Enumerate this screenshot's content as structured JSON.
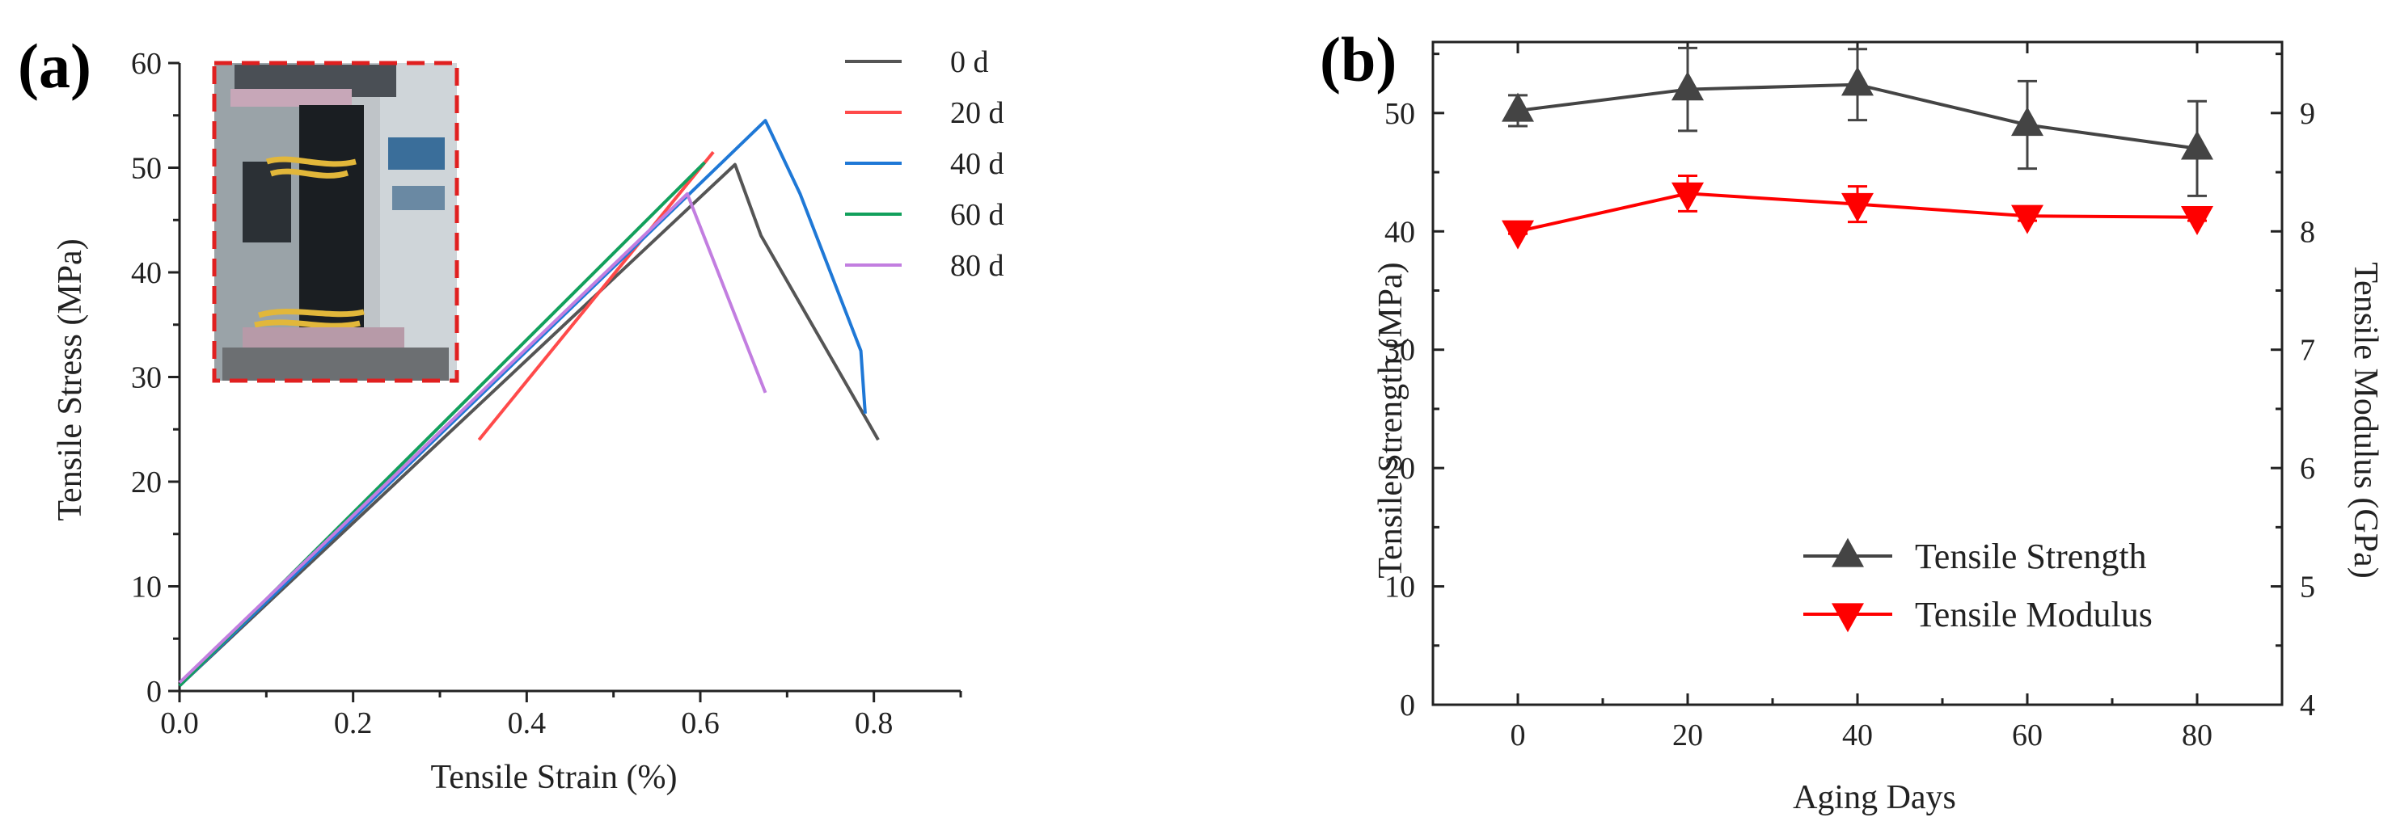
{
  "chart_data": [
    {
      "panel": "(a)",
      "type": "line",
      "xlabel": "Tensile Strain (%)",
      "ylabel": "Tensile Stress (MPa)",
      "xlim": [
        0.0,
        0.9
      ],
      "ylim": [
        0,
        60
      ],
      "xticks": [
        0.0,
        0.2,
        0.4,
        0.6,
        0.8
      ],
      "xtick_labels": [
        "0.0",
        "0.2",
        "0.4",
        "0.6",
        "0.8"
      ],
      "yticks": [
        0,
        10,
        20,
        30,
        40,
        50,
        60
      ],
      "ytick_labels": [
        "0",
        "10",
        "20",
        "30",
        "40",
        "50",
        "60"
      ],
      "legend_position": "top-right",
      "inset": "photo of tensile test specimen in grips (red dashed border)",
      "series": [
        {
          "name": "0 d",
          "color": "#555555",
          "x": [
            0.0,
            0.64,
            0.67,
            0.805
          ],
          "y": [
            0.5,
            50.3,
            43.5,
            24.0
          ]
        },
        {
          "name": "20 d",
          "color": "#ff4a4a",
          "x": [
            0.345,
            0.615
          ],
          "y": [
            24.0,
            51.5
          ]
        },
        {
          "name": "40 d",
          "color": "#1f78d6",
          "x": [
            0.0,
            0.675,
            0.715,
            0.785,
            0.79
          ],
          "y": [
            0.5,
            54.5,
            47.5,
            32.5,
            26.5
          ]
        },
        {
          "name": "60 d",
          "color": "#12a05c",
          "x": [
            0.0,
            0.605
          ],
          "y": [
            0.5,
            50.5
          ]
        },
        {
          "name": "80 d",
          "color": "#c27ee0",
          "x": [
            0.0,
            0.585,
            0.675
          ],
          "y": [
            0.8,
            47.5,
            28.5
          ]
        }
      ]
    },
    {
      "panel": "(b)",
      "type": "line",
      "xlabel": "Aging Days",
      "ylabel": "Tensile Strength (MPa)",
      "ylabel_right": "Tensile Modulus (GPa)",
      "xlim": [
        -10,
        90
      ],
      "ylim": [
        0,
        56
      ],
      "ylim_right": [
        4,
        9.6
      ],
      "xticks": [
        0,
        20,
        40,
        60,
        80
      ],
      "xtick_labels": [
        "0",
        "20",
        "40",
        "60",
        "80"
      ],
      "yticks": [
        0,
        10,
        20,
        30,
        40,
        50
      ],
      "ytick_labels": [
        "0",
        "10",
        "20",
        "30",
        "40",
        "50"
      ],
      "yticks_right": [
        4,
        5,
        6,
        7,
        8,
        9
      ],
      "ytick_labels_right": [
        "4",
        "5",
        "6",
        "7",
        "8",
        "9"
      ],
      "legend_position": "bottom-right",
      "series": [
        {
          "name": "Tensile Strength",
          "axis": "left",
          "color": "#444444",
          "marker": "triangle-up",
          "x": [
            0,
            20,
            40,
            60,
            80
          ],
          "y": [
            50.2,
            52.0,
            52.4,
            49.0,
            47.0
          ],
          "err": [
            1.3,
            3.5,
            3.0,
            3.7,
            4.0
          ]
        },
        {
          "name": "Tensile Modulus",
          "axis": "right",
          "color": "#ff0000",
          "marker": "triangle-down",
          "x": [
            0,
            20,
            40,
            60,
            80
          ],
          "y": [
            8.0,
            8.32,
            8.23,
            8.13,
            8.12
          ],
          "err": [
            0.02,
            0.15,
            0.15,
            0.04,
            0.03
          ]
        }
      ]
    }
  ]
}
